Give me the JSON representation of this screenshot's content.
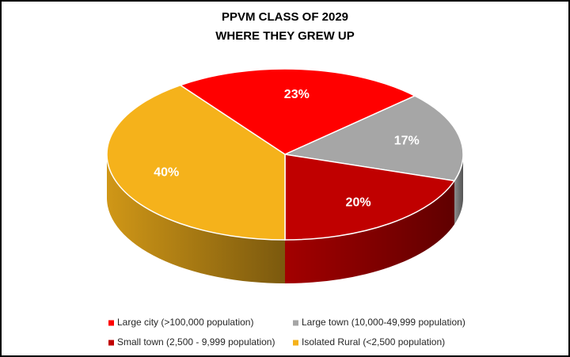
{
  "chart_data": {
    "type": "pie3d",
    "title": "PPVM CLASS OF 2029",
    "subtitle": "WHERE THEY GREW UP",
    "series": [
      {
        "name": "Large city (>100,000 population)",
        "color": "#ff0000",
        "values": [
          23
        ],
        "value_labels": [
          "23%"
        ]
      },
      {
        "name": "Large town (10,000-49,999 population)",
        "color": "#a6a6a6",
        "values": [
          17
        ],
        "value_labels": [
          "17%"
        ]
      },
      {
        "name": "Small town (2,500 - 9,999 population)",
        "color": "#c00000",
        "values": [
          20
        ],
        "value_labels": [
          "20%"
        ]
      },
      {
        "name": "Isolated Rural (<2,500 population)",
        "color": "#f5b21b",
        "values": [
          40
        ],
        "value_labels": [
          "40%"
        ]
      }
    ],
    "legend": "bottom"
  }
}
